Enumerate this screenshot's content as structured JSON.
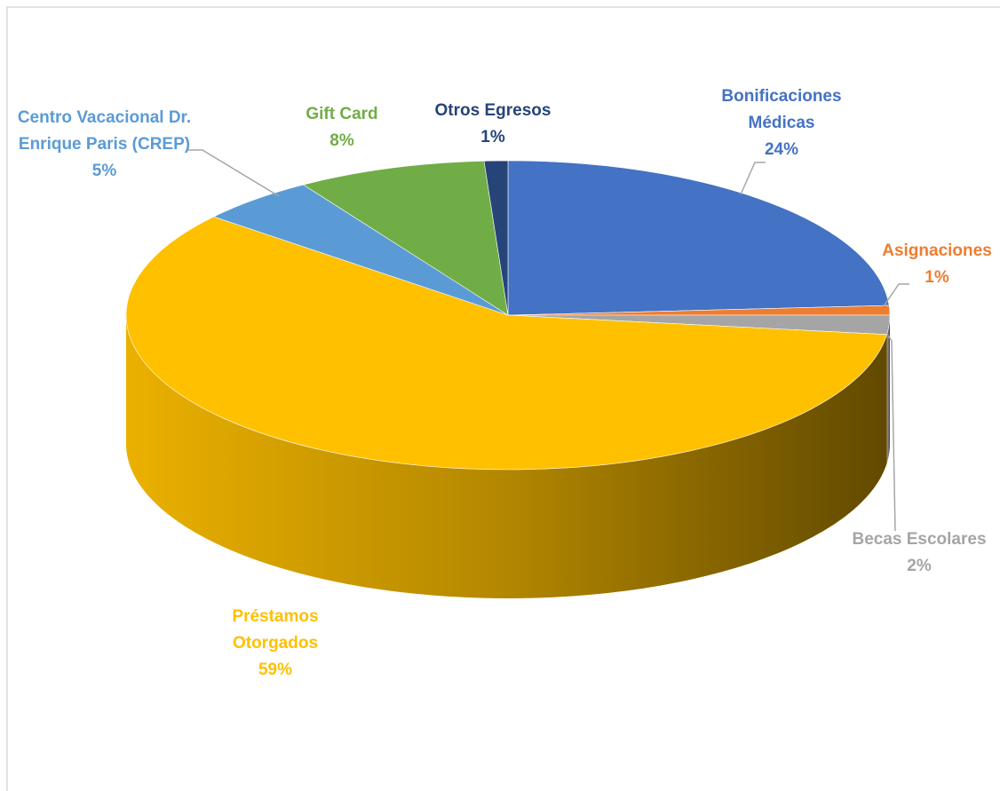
{
  "chart_data": {
    "type": "pie3d",
    "categories": [
      "Bonificaciones Médicas",
      "Asignaciones",
      "Becas Escolares",
      "Préstamos Otorgados",
      "Centro Vacacional Dr. Enrique Paris (CREP)",
      "Gift Card",
      "Otros Egresos"
    ],
    "values": [
      24,
      1,
      2,
      59,
      5,
      8,
      1
    ],
    "value_labels": [
      "24%",
      "1%",
      "2%",
      "59%",
      "5%",
      "8%",
      "1%"
    ],
    "colors": [
      "#4472c4",
      "#ed7d31",
      "#a5a5a5",
      "#ffc000",
      "#5b9bd5",
      "#70ad47",
      "#264478"
    ]
  }
}
